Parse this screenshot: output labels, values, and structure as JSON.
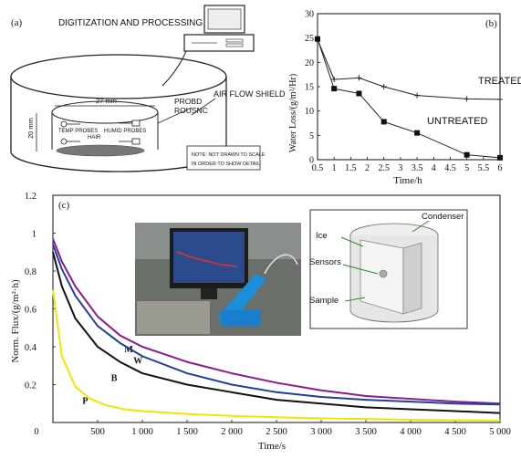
{
  "panel_a": {
    "label": "(a)",
    "title": "DIGITIZATION AND PROCESSING",
    "dim_width": "27 mm",
    "dim_height": "20 mm",
    "probe_label_1": "PROBD",
    "probe_label_2": "ROUSNC",
    "air_flow": "AIR FLOW SHIELD",
    "temp_probes": "TEMP PROBES",
    "humid_probes": "HUMID PROBES",
    "hair": "HAIR",
    "note_1": "NOTE: NOT DRAWN TO SCALE",
    "note_2": "IN ORDER TO SHOW DETAIL"
  },
  "chart_data": [
    {
      "type": "line",
      "panel": "(b)",
      "xlabel": "Time/h",
      "ylabel": "Water Loss/(g/m²/Hr)",
      "xlim": [
        0.5,
        6
      ],
      "ylim": [
        0,
        30
      ],
      "xticks": [
        "0.5",
        "1",
        "1.5",
        "2",
        "2.5",
        "3",
        "3.5",
        "4",
        "4.5",
        "5",
        "5.5",
        "6"
      ],
      "yticks": [
        "0",
        "5",
        "10",
        "15",
        "20",
        "25",
        "30"
      ],
      "series": [
        {
          "name": "TREATED",
          "x": [
            0.5,
            1,
            1.75,
            2.5,
            3.5,
            5,
            6
          ],
          "y": [
            24.7,
            16.5,
            16.8,
            15.0,
            13.2,
            12.5,
            12.4
          ]
        },
        {
          "name": "UNTREATED",
          "x": [
            0.5,
            1,
            1.75,
            2.5,
            3.5,
            5,
            6
          ],
          "y": [
            24.8,
            14.6,
            13.6,
            7.8,
            5.5,
            1.0,
            0.4
          ]
        }
      ]
    },
    {
      "type": "line",
      "panel": "(c)",
      "xlabel": "Time/s",
      "ylabel": "Norm. Flux/(g/m²·h)",
      "xlim": [
        0,
        5000
      ],
      "ylim": [
        0,
        1.2
      ],
      "xticks": [
        "0",
        "500",
        "1 000",
        "1 500",
        "2 000",
        "2 500",
        "3 000",
        "3 500",
        "4 000",
        "4 500",
        "5 000"
      ],
      "yticks": [
        "0.2",
        "0.4",
        "0.6",
        "0.8",
        "1",
        "1.2"
      ],
      "series": [
        {
          "name": "M",
          "x": [
            0,
            100,
            250,
            500,
            750,
            1000,
            1500,
            2000,
            2500,
            3000,
            3500,
            4000,
            4500,
            5000
          ],
          "y": [
            0.97,
            0.85,
            0.72,
            0.56,
            0.46,
            0.4,
            0.32,
            0.26,
            0.21,
            0.17,
            0.14,
            0.125,
            0.11,
            0.1
          ]
        },
        {
          "name": "W",
          "x": [
            0,
            100,
            250,
            500,
            750,
            1000,
            1500,
            2000,
            2500,
            3000,
            3500,
            4000,
            4500,
            5000
          ],
          "y": [
            0.94,
            0.81,
            0.67,
            0.51,
            0.42,
            0.35,
            0.26,
            0.2,
            0.16,
            0.135,
            0.12,
            0.11,
            0.1,
            0.095
          ]
        },
        {
          "name": "B",
          "x": [
            0,
            100,
            250,
            500,
            750,
            1000,
            1500,
            2000,
            2500,
            3000,
            3500,
            4000,
            4500,
            5000
          ],
          "y": [
            0.9,
            0.72,
            0.55,
            0.4,
            0.32,
            0.26,
            0.2,
            0.16,
            0.12,
            0.1,
            0.08,
            0.07,
            0.06,
            0.05
          ]
        },
        {
          "name": "P",
          "x": [
            0,
            100,
            250,
            400,
            600,
            800,
            1000,
            1500,
            2000,
            2500,
            3000,
            4000,
            5000
          ],
          "y": [
            0.7,
            0.35,
            0.19,
            0.13,
            0.09,
            0.07,
            0.06,
            0.045,
            0.035,
            0.028,
            0.022,
            0.015,
            0.01
          ]
        }
      ]
    }
  ],
  "panel_c_insets": {
    "condenser": "Condenser",
    "ice": "Ice",
    "sensors": "Sensors",
    "sample": "Sample"
  },
  "colors": {
    "M": "#8b1a8b",
    "W": "#1f3f9f",
    "B": "#111111",
    "P": "#f2e600",
    "inset_label": "#3a3aa0"
  }
}
